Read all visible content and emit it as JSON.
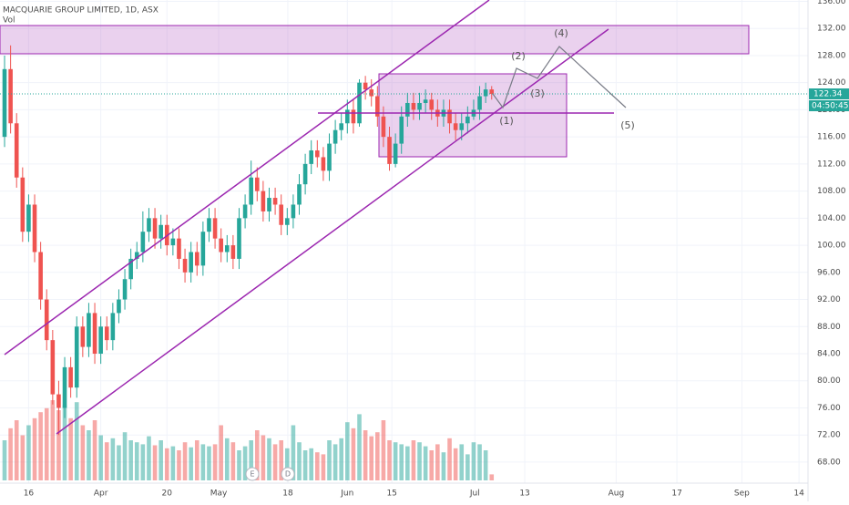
{
  "chart_data": {
    "type": "candlestick",
    "title": "MACQUARIE GROUP LIMITED, 1D, ASX",
    "volume_label": "Vol",
    "up_color": "#26a69a",
    "down_color": "#ef5350",
    "open": [
      116,
      126,
      118,
      110,
      102,
      106,
      99,
      92,
      86,
      78,
      76,
      82,
      79,
      88,
      85,
      90,
      84,
      88,
      86,
      90,
      92,
      95,
      98,
      99,
      102,
      104,
      101,
      103,
      100,
      101,
      98,
      96,
      99,
      97,
      102,
      104,
      101,
      99,
      100,
      98,
      104,
      106,
      110,
      108,
      105,
      107,
      106,
      103,
      104,
      106,
      109,
      112,
      114,
      113,
      111,
      115,
      117,
      118,
      120,
      118,
      124,
      123,
      122,
      119,
      116,
      112,
      115,
      119,
      121,
      120,
      121,
      121.5,
      120,
      119,
      120,
      118,
      117,
      118,
      119,
      120,
      122,
      123
    ],
    "high": [
      128,
      129.5,
      119.5,
      111.5,
      107.5,
      107.5,
      100.5,
      93.5,
      87.5,
      80,
      83.5,
      83.5,
      89.5,
      89.5,
      91.5,
      91.5,
      89.5,
      89.5,
      91.5,
      93.5,
      96.5,
      99.5,
      100.5,
      105,
      105.5,
      105.5,
      104.5,
      104.5,
      102.5,
      102.5,
      99.5,
      100.5,
      100.5,
      103.5,
      105.5,
      105.5,
      102.5,
      101.5,
      101.5,
      105.5,
      107.5,
      112.5,
      111.5,
      109.5,
      108.5,
      108.5,
      107.5,
      105.5,
      107.5,
      110.5,
      113.5,
      115.5,
      115.5,
      114.5,
      116.5,
      118.5,
      119.5,
      121.5,
      121.5,
      124.5,
      125,
      124.5,
      123.5,
      120.5,
      117.5,
      116.5,
      120.5,
      122.5,
      122.5,
      122.5,
      123,
      122.5,
      121.5,
      121.5,
      121.5,
      119.5,
      119.5,
      120.5,
      121.5,
      123.5,
      124,
      123.5
    ],
    "low": [
      114.5,
      116.5,
      108.5,
      100.5,
      100.5,
      97.5,
      90.5,
      84.5,
      76.5,
      72,
      74.5,
      77.5,
      77.5,
      83.5,
      83.5,
      82.5,
      82.5,
      84.5,
      84.5,
      88.5,
      90.5,
      93.5,
      96.5,
      97.5,
      100.5,
      99.5,
      99.5,
      98.5,
      98.5,
      96.5,
      94.5,
      94.5,
      95.5,
      95.5,
      100.5,
      99.5,
      97.5,
      97.5,
      96.5,
      96.5,
      102.5,
      104.5,
      106.5,
      103.5,
      103.5,
      104.5,
      101.5,
      101.5,
      102.5,
      104.5,
      107.5,
      110.5,
      111.5,
      109.5,
      109.5,
      113.5,
      115.5,
      116.5,
      116.5,
      117.5,
      121.5,
      120.5,
      117.5,
      114.5,
      111,
      111.5,
      113.5,
      117.5,
      118.5,
      118.5,
      119.5,
      118.5,
      117.5,
      117.5,
      116.5,
      115.5,
      115.5,
      116.5,
      118.5,
      118.5,
      121,
      121.5
    ],
    "close": [
      126,
      118,
      110,
      102,
      106,
      99,
      92,
      86,
      78,
      76,
      82,
      79,
      88,
      85,
      90,
      84,
      88,
      86,
      90,
      92,
      95,
      98,
      99,
      102,
      104,
      101,
      103,
      100,
      101,
      98,
      96,
      99,
      97,
      102,
      104,
      101,
      99,
      100,
      98,
      104,
      106,
      110,
      108,
      105,
      107,
      106,
      103,
      104,
      106,
      109,
      112,
      114,
      113,
      111,
      115,
      117,
      118,
      120,
      118,
      124,
      123,
      122,
      119,
      116,
      112,
      115,
      119,
      121,
      120,
      121,
      121.5,
      120,
      119,
      120,
      118,
      117,
      118,
      119,
      120,
      122,
      123,
      122.34
    ],
    "volume": [
      40,
      52,
      60,
      45,
      55,
      62,
      68,
      72,
      80,
      70,
      75,
      62,
      78,
      55,
      50,
      60,
      45,
      38,
      42,
      35,
      48,
      40,
      38,
      36,
      44,
      35,
      40,
      32,
      34,
      30,
      38,
      33,
      40,
      36,
      34,
      36,
      55,
      42,
      38,
      30,
      34,
      40,
      50,
      45,
      42,
      36,
      40,
      32,
      55,
      38,
      30,
      32,
      28,
      26,
      40,
      36,
      42,
      58,
      52,
      66,
      50,
      44,
      48,
      60,
      40,
      38,
      36,
      34,
      40,
      38,
      34,
      30,
      36,
      28,
      42,
      32,
      36,
      26,
      38,
      36,
      30,
      6
    ],
    "volume_lim": [
      0,
      100
    ],
    "xlim": [
      -0.76,
      133.6
    ],
    "xticks": [
      {
        "value": 4,
        "label": "16"
      },
      {
        "value": 16,
        "label": "Apr"
      },
      {
        "value": 27,
        "label": "20"
      },
      {
        "value": 35.6,
        "label": "May"
      },
      {
        "value": 47.1,
        "label": "18"
      },
      {
        "value": 57,
        "label": "Jun"
      },
      {
        "value": 64.4,
        "label": "15"
      },
      {
        "value": 78.2,
        "label": "Jul"
      },
      {
        "value": 86.5,
        "label": "13"
      },
      {
        "value": 101.7,
        "label": "Aug"
      },
      {
        "value": 111.8,
        "label": "17"
      },
      {
        "value": 122.6,
        "label": "Sep"
      },
      {
        "value": 132.1,
        "label": "14"
      }
    ],
    "ylim": [
      65.3,
      136.2
    ],
    "yticks": [
      {
        "value": 68,
        "label": "68.00"
      },
      {
        "value": 72,
        "label": "72.00"
      },
      {
        "value": 76,
        "label": "76.00"
      },
      {
        "value": 80,
        "label": "80.00"
      },
      {
        "value": 84,
        "label": "84.00"
      },
      {
        "value": 88,
        "label": "88.00"
      },
      {
        "value": 92,
        "label": "92.00"
      },
      {
        "value": 96,
        "label": "96.00"
      },
      {
        "value": 100,
        "label": "100.00"
      },
      {
        "value": 104,
        "label": "104.00"
      },
      {
        "value": 108,
        "label": "108.00"
      },
      {
        "value": 112,
        "label": "112.00"
      },
      {
        "value": 116,
        "label": "116.00"
      },
      {
        "value": 120,
        "label": "120.00"
      },
      {
        "value": 124,
        "label": "124.00"
      },
      {
        "value": 128,
        "label": "128.00"
      },
      {
        "value": 132,
        "label": "132.00"
      },
      {
        "value": 136,
        "label": "136.00"
      }
    ],
    "last_price": {
      "value": 122.34,
      "label": "122.34"
    },
    "countdown": "04:50:45",
    "annotations": [
      "(1)",
      "(2)",
      "(3)",
      "(4)",
      "(5)"
    ],
    "events": [
      "E",
      "D"
    ]
  }
}
